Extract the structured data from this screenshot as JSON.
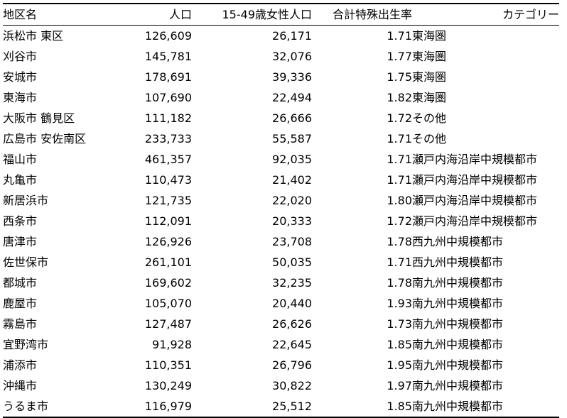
{
  "table": {
    "headers": {
      "area": "地区名",
      "population": "人口",
      "female_15_49": "15-49歳女性人口",
      "tfr": "合計特殊出生率",
      "category": "カテゴリー"
    },
    "rows": [
      {
        "area": "浜松市 東区",
        "population": "126,609",
        "female_15_49": "26,171",
        "tfr": "1.71",
        "category": "東海圏"
      },
      {
        "area": "刈谷市",
        "population": "145,781",
        "female_15_49": "32,076",
        "tfr": "1.77",
        "category": "東海圏"
      },
      {
        "area": "安城市",
        "population": "178,691",
        "female_15_49": "39,336",
        "tfr": "1.75",
        "category": "東海圏"
      },
      {
        "area": "東海市",
        "population": "107,690",
        "female_15_49": "22,494",
        "tfr": "1.82",
        "category": "東海圏"
      },
      {
        "area": "大阪市 鶴見区",
        "population": "111,182",
        "female_15_49": "26,666",
        "tfr": "1.72",
        "category": "その他"
      },
      {
        "area": "広島市 安佐南区",
        "population": "233,733",
        "female_15_49": "55,587",
        "tfr": "1.71",
        "category": "その他"
      },
      {
        "area": "福山市",
        "population": "461,357",
        "female_15_49": "92,035",
        "tfr": "1.71",
        "category": "瀬戸内海沿岸中規模都市"
      },
      {
        "area": "丸亀市",
        "population": "110,473",
        "female_15_49": "21,402",
        "tfr": "1.71",
        "category": "瀬戸内海沿岸中規模都市"
      },
      {
        "area": "新居浜市",
        "population": "121,735",
        "female_15_49": "22,020",
        "tfr": "1.80",
        "category": "瀬戸内海沿岸中規模都市"
      },
      {
        "area": "西条市",
        "population": "112,091",
        "female_15_49": "20,333",
        "tfr": "1.72",
        "category": "瀬戸内海沿岸中規模都市"
      },
      {
        "area": "唐津市",
        "population": "126,926",
        "female_15_49": "23,708",
        "tfr": "1.78",
        "category": "西九州中規模都市"
      },
      {
        "area": "佐世保市",
        "population": "261,101",
        "female_15_49": "50,035",
        "tfr": "1.71",
        "category": "西九州中規模都市"
      },
      {
        "area": "都城市",
        "population": "169,602",
        "female_15_49": "32,235",
        "tfr": "1.78",
        "category": "南九州中規模都市"
      },
      {
        "area": "鹿屋市",
        "population": "105,070",
        "female_15_49": "20,440",
        "tfr": "1.93",
        "category": "南九州中規模都市"
      },
      {
        "area": "霧島市",
        "population": "127,487",
        "female_15_49": "26,626",
        "tfr": "1.73",
        "category": "南九州中規模都市"
      },
      {
        "area": "宜野湾市",
        "population": "91,928",
        "female_15_49": "22,645",
        "tfr": "1.85",
        "category": "南九州中規模都市"
      },
      {
        "area": "浦添市",
        "population": "110,351",
        "female_15_49": "26,796",
        "tfr": "1.95",
        "category": "南九州中規模都市"
      },
      {
        "area": "沖縄市",
        "population": "130,249",
        "female_15_49": "30,822",
        "tfr": "1.97",
        "category": "南九州中規模都市"
      },
      {
        "area": "うるま市",
        "population": "116,979",
        "female_15_49": "25,512",
        "tfr": "1.85",
        "category": "南九州中規模都市"
      }
    ]
  }
}
